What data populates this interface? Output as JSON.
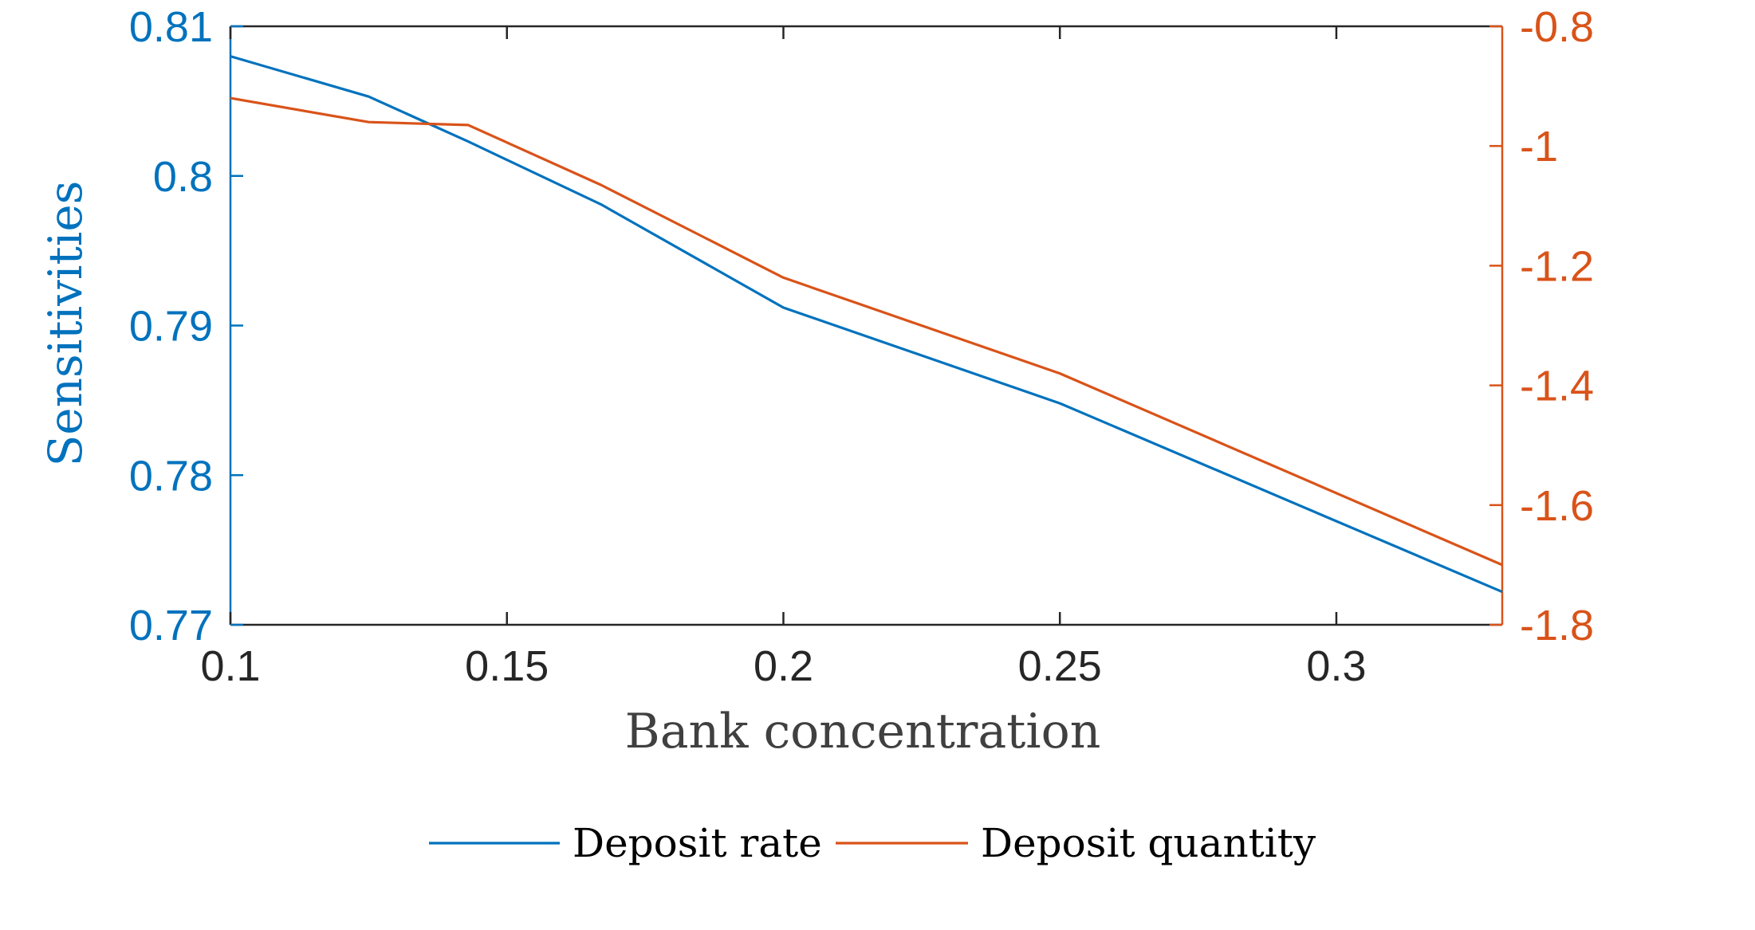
{
  "colors": {
    "left_axis": "#0072BD",
    "right_axis": "#D95319",
    "axis_dark": "#262626",
    "series_rate": "#0072BD",
    "series_quantity": "#D95319"
  },
  "chart_data": {
    "type": "line",
    "xlabel": "Bank concentration",
    "ylabel_left": "Sensitivities",
    "ylabel_right": "",
    "xlim": [
      0.1,
      0.33
    ],
    "ylim_left": [
      0.77,
      0.81
    ],
    "ylim_right": [
      -1.8,
      -0.8
    ],
    "x_ticks": [
      "0.1",
      "0.15",
      "0.2",
      "0.25",
      "0.3"
    ],
    "x_tick_values": [
      0.1,
      0.15,
      0.2,
      0.25,
      0.3
    ],
    "y_left_ticks": [
      "0.81",
      "0.8",
      "0.79",
      "0.78",
      "0.77"
    ],
    "y_left_tick_values": [
      0.81,
      0.8,
      0.79,
      0.78,
      0.77
    ],
    "y_right_ticks": [
      "-0.8",
      "-1",
      "-1.2",
      "-1.4",
      "-1.6",
      "-1.8"
    ],
    "y_right_tick_values": [
      -0.8,
      -1.0,
      -1.2,
      -1.4,
      -1.6,
      -1.8
    ],
    "grid": false,
    "legend_position": "bottom",
    "series": [
      {
        "name": "Deposit rate",
        "axis": "left",
        "x": [
          0.1,
          0.125,
          0.143,
          0.167,
          0.2,
          0.25,
          0.33
        ],
        "y": [
          0.808,
          0.8053,
          0.8023,
          0.7981,
          0.7912,
          0.7848,
          0.7722
        ]
      },
      {
        "name": "Deposit quantity",
        "axis": "right",
        "x": [
          0.1,
          0.125,
          0.143,
          0.167,
          0.2,
          0.25,
          0.33
        ],
        "y": [
          -0.92,
          -0.96,
          -0.965,
          -1.065,
          -1.22,
          -1.38,
          -1.7
        ]
      }
    ]
  }
}
